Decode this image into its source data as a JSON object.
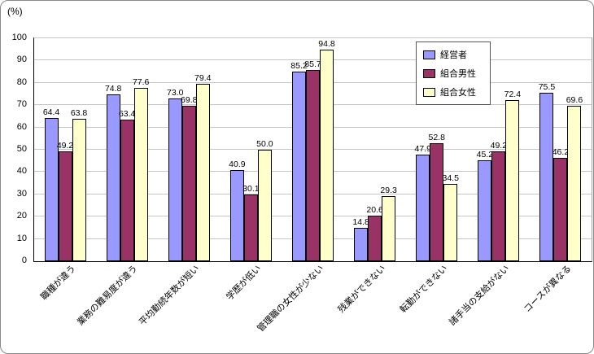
{
  "chart_data": {
    "type": "bar",
    "title": "",
    "ylabel": "(%)",
    "xlabel": "",
    "ylim": [
      0,
      100
    ],
    "ytick_step": 10,
    "grid": true,
    "legend_position": "top-right",
    "categories": [
      "職種が違う",
      "業務の難易度が違う",
      "平均勤続年数が短い",
      "学歴が低い",
      "管理職の女性が少ない",
      "残業ができない",
      "転勤ができない",
      "諸手当の支給がない",
      "コースが異なる"
    ],
    "series": [
      {
        "name": "経営者",
        "values": [
          64.4,
          74.8,
          73.0,
          40.9,
          85.2,
          14.8,
          47.9,
          45.2,
          75.5
        ]
      },
      {
        "name": "組合男性",
        "values": [
          49.2,
          63.4,
          69.8,
          30.1,
          85.7,
          20.6,
          52.8,
          49.2,
          46.2
        ]
      },
      {
        "name": "組合女性",
        "values": [
          63.8,
          77.6,
          79.4,
          50.0,
          94.8,
          29.3,
          34.5,
          72.4,
          69.6
        ]
      }
    ],
    "colors": [
      "#9999FF",
      "#993366",
      "#FFFFCC"
    ]
  }
}
